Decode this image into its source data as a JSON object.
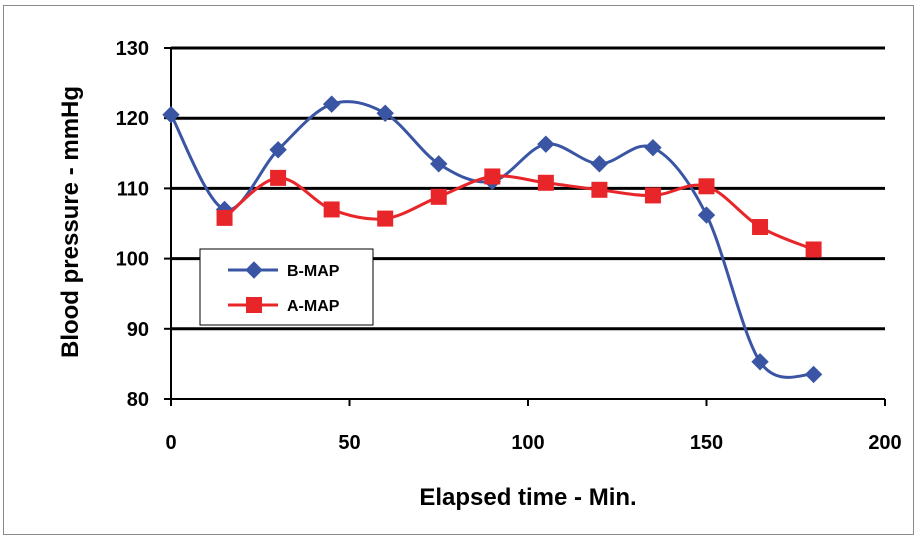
{
  "chart_data": {
    "type": "line",
    "title": "",
    "xlabel": "Elapsed time - Min.",
    "ylabel": "Blood pressure - mmHg",
    "xlim": [
      0,
      200
    ],
    "ylim": [
      80,
      130
    ],
    "xticks": [
      0,
      50,
      100,
      150,
      200
    ],
    "yticks": [
      80,
      90,
      100,
      110,
      120,
      130
    ],
    "grid": "horizontal",
    "legend_position": "left",
    "series": [
      {
        "name": "B-MAP",
        "color": "#3a55a4",
        "marker": "diamond",
        "x": [
          0,
          15,
          30,
          45,
          60,
          75,
          90,
          105,
          120,
          135,
          150,
          165,
          180
        ],
        "y": [
          120.5,
          107,
          115.5,
          122,
          120.7,
          113.5,
          111,
          116.3,
          113.5,
          115.8,
          106.2,
          85.3,
          83.5
        ]
      },
      {
        "name": "A-MAP",
        "color": "#e8262a",
        "marker": "square",
        "x": [
          15,
          30,
          45,
          60,
          75,
          90,
          105,
          120,
          135,
          150,
          165,
          180
        ],
        "y": [
          105.8,
          111.5,
          107,
          105.7,
          108.8,
          111.7,
          110.8,
          109.8,
          109,
          110.3,
          104.5,
          101.3
        ]
      }
    ]
  }
}
